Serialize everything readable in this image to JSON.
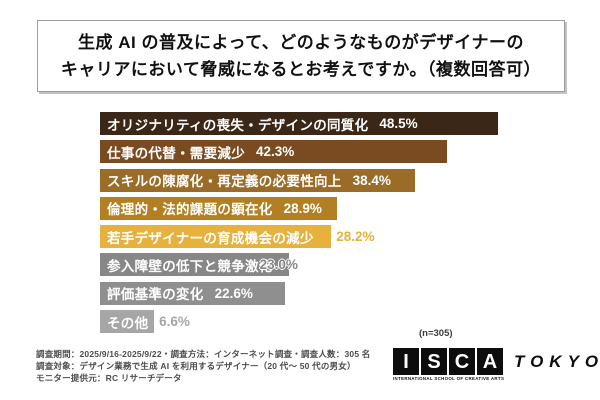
{
  "title": {
    "line1": "生成 AI の普及によって、どのようなものがデザイナーの",
    "line2": "キャリアにおいて脅威になるとお考えですか。（複数回答可）"
  },
  "chart_data": {
    "type": "bar",
    "orientation": "horizontal",
    "title": "生成 AI の普及によって、どのようなものがデザイナーのキャリアにおいて脅威になるとお考えですか。（複数回答可）",
    "categories": [
      "オリジナリティの喪失・デザインの同質化",
      "仕事の代替・需要減少",
      "スキルの陳腐化・再定義の必要性向上",
      "倫理的・法的課題の顕在化",
      "若手デザイナーの育成機会の減少",
      "参入障壁の低下と競争激化",
      "評価基準の変化",
      "その他"
    ],
    "values": [
      48.5,
      42.3,
      38.4,
      28.9,
      28.2,
      23.0,
      22.6,
      6.6
    ],
    "value_labels": [
      "48.5%",
      "42.3%",
      "38.4%",
      "28.9%",
      "28.2%",
      "23.0%",
      "22.6%",
      "6.6%"
    ],
    "colors": [
      "#3a2717",
      "#7a4b20",
      "#9b6b28",
      "#b28022",
      "#e6b13c",
      "#878787",
      "#8f8f8f",
      "#a6a6a6"
    ],
    "value_placement": [
      "inside",
      "inside",
      "inside",
      "inside",
      "outside",
      "overlap",
      "inside",
      "outside"
    ],
    "xlim": [
      0,
      58
    ],
    "grid": false,
    "legend": false,
    "n_note": "(n=305)"
  },
  "footer": {
    "lines": [
      "調査期間：2025/9/16-2025/9/22・調査方法：インターネット調査・調査人数：305 名",
      "調査対象：デザイン業務で生成 AI を利用するデザイナー（20 代〜 50 代の男女）",
      "モニター提供元：RC リサーチデータ"
    ]
  },
  "logo": {
    "letters": [
      "I",
      "S",
      "C",
      "A"
    ],
    "city": "TOKYO",
    "tagline": "INTERNATIONAL SCHOOL OF CREATIVE ARTS"
  }
}
